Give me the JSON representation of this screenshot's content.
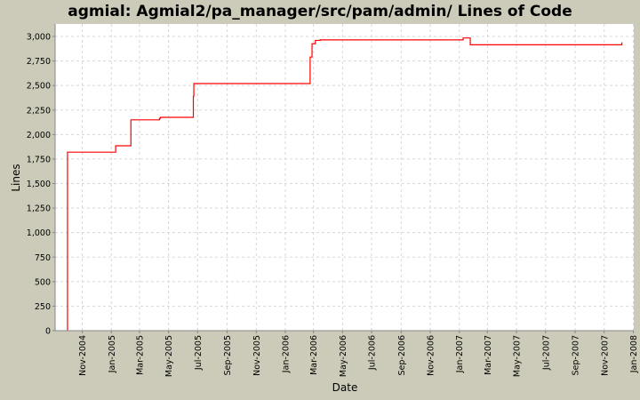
{
  "chart_data": {
    "type": "line",
    "title": "agmial: Agmial2/pa_manager/src/pam/admin/ Lines of Code",
    "xlabel": "Date",
    "ylabel": "Lines",
    "line_style": "step",
    "grid": true,
    "legend": "none",
    "colors": {
      "background": "#cccbb9",
      "plot": "#ffffff",
      "line": "#ff0000",
      "grid": "#d8d8d8"
    },
    "xlim": [
      "2004-09-05",
      "2008-01-02"
    ],
    "ylim": [
      0,
      3127
    ],
    "x_ticks": [
      {
        "date": "2004-11-01",
        "label": "Nov-2004"
      },
      {
        "date": "2005-01-01",
        "label": "Jan-2005"
      },
      {
        "date": "2005-03-01",
        "label": "Mar-2005"
      },
      {
        "date": "2005-05-01",
        "label": "May-2005"
      },
      {
        "date": "2005-07-01",
        "label": "Jul-2005"
      },
      {
        "date": "2005-09-01",
        "label": "Sep-2005"
      },
      {
        "date": "2005-11-01",
        "label": "Nov-2005"
      },
      {
        "date": "2006-01-01",
        "label": "Jan-2006"
      },
      {
        "date": "2006-03-01",
        "label": "Mar-2006"
      },
      {
        "date": "2006-05-01",
        "label": "May-2006"
      },
      {
        "date": "2006-07-01",
        "label": "Jul-2006"
      },
      {
        "date": "2006-09-01",
        "label": "Sep-2006"
      },
      {
        "date": "2006-11-01",
        "label": "Nov-2006"
      },
      {
        "date": "2007-01-01",
        "label": "Jan-2007"
      },
      {
        "date": "2007-03-01",
        "label": "Mar-2007"
      },
      {
        "date": "2007-05-01",
        "label": "May-2007"
      },
      {
        "date": "2007-07-01",
        "label": "Jul-2007"
      },
      {
        "date": "2007-09-01",
        "label": "Sep-2007"
      },
      {
        "date": "2007-11-01",
        "label": "Nov-2007"
      },
      {
        "date": "2008-01-01",
        "label": "Jan-2008"
      }
    ],
    "y_ticks": [
      {
        "value": 0,
        "label": "0"
      },
      {
        "value": 250,
        "label": "250"
      },
      {
        "value": 500,
        "label": "500"
      },
      {
        "value": 750,
        "label": "750"
      },
      {
        "value": 1000,
        "label": "1,000"
      },
      {
        "value": 1250,
        "label": "1,250"
      },
      {
        "value": 1500,
        "label": "1,500"
      },
      {
        "value": 1750,
        "label": "1,750"
      },
      {
        "value": 2000,
        "label": "2,000"
      },
      {
        "value": 2250,
        "label": "2,250"
      },
      {
        "value": 2500,
        "label": "2,500"
      },
      {
        "value": 2750,
        "label": "2,750"
      },
      {
        "value": 3000,
        "label": "3,000"
      }
    ],
    "series": [
      {
        "x": [
          "2004-10-01",
          "2004-10-01",
          "2005-01-10",
          "2005-02-11",
          "2005-04-12",
          "2005-04-14",
          "2005-06-22",
          "2005-06-23",
          "2006-02-22",
          "2006-02-26",
          "2006-03-05",
          "2006-03-15",
          "2007-01-09",
          "2007-01-24",
          "2007-12-08"
        ],
        "values": [
          0,
          1820,
          1885,
          2150,
          2165,
          2175,
          2390,
          2520,
          2790,
          2925,
          2960,
          2965,
          2985,
          2915,
          2940
        ]
      }
    ]
  }
}
